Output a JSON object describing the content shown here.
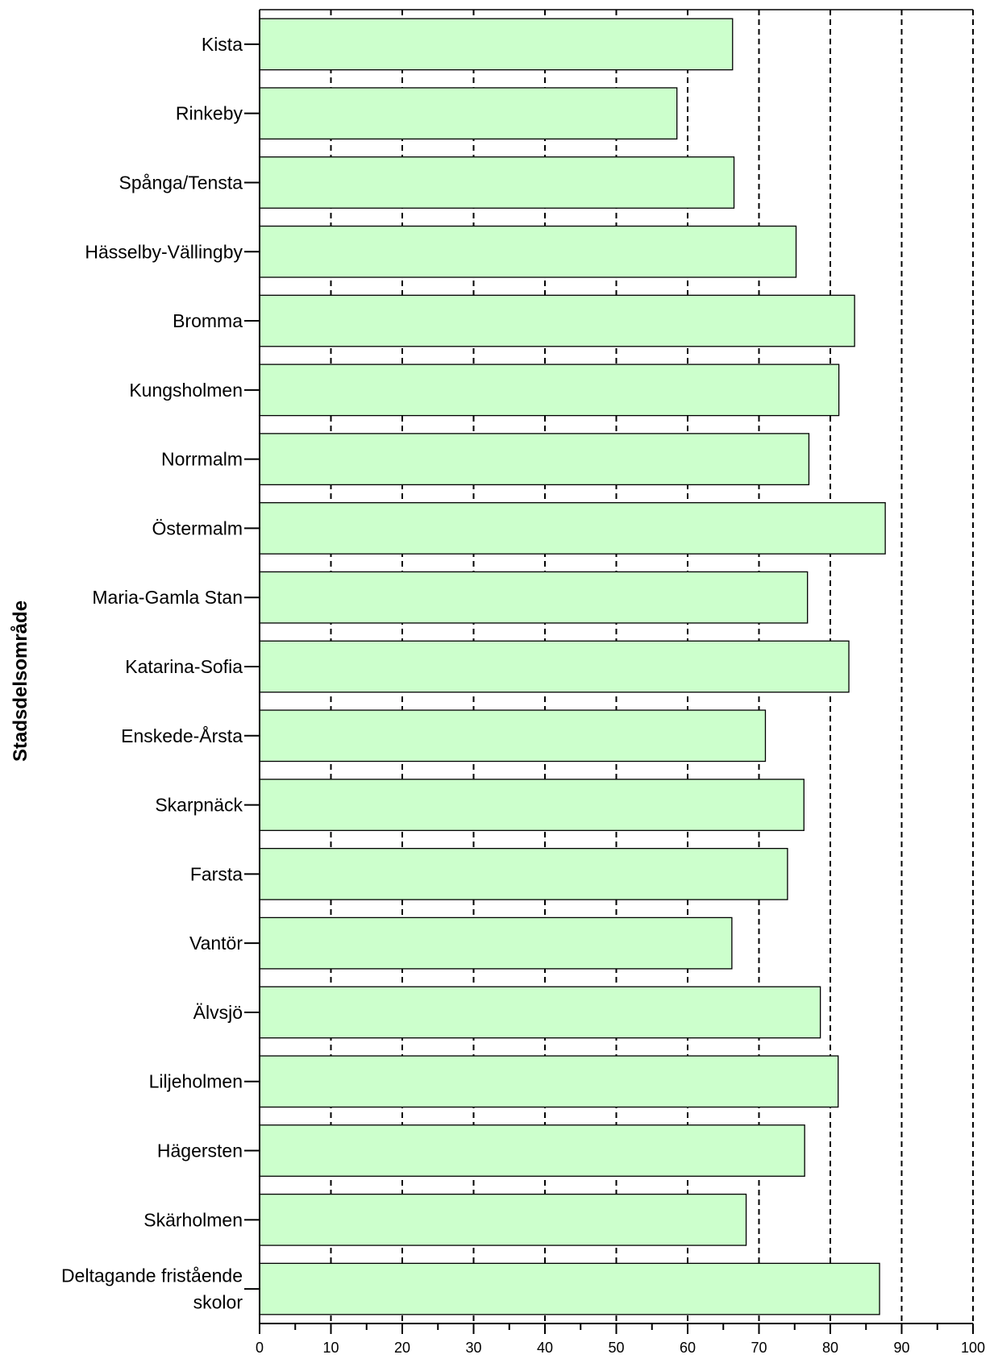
{
  "chart_data": {
    "type": "bar",
    "orientation": "horizontal",
    "ylabel": "Stadsdelsområde",
    "xlabel": "",
    "title": "",
    "xlim": [
      0,
      100
    ],
    "xticks": [
      0,
      10,
      20,
      30,
      40,
      50,
      60,
      70,
      80,
      90,
      100
    ],
    "grid": "vertical dashed",
    "bar_color": "#ccffcc",
    "categories": [
      [
        "Kista"
      ],
      [
        "Rinkeby"
      ],
      [
        "Spånga/Tensta"
      ],
      [
        "Hässelby-Vällingby"
      ],
      [
        "Bromma"
      ],
      [
        "Kungsholmen"
      ],
      [
        "Norrmalm"
      ],
      [
        "Östermalm"
      ],
      [
        "Maria-Gamla Stan"
      ],
      [
        "Katarina-Sofia"
      ],
      [
        "Enskede-Årsta"
      ],
      [
        "Skarpnäck"
      ],
      [
        "Farsta"
      ],
      [
        "Vantör"
      ],
      [
        "Älvsjö"
      ],
      [
        "Liljeholmen"
      ],
      [
        "Hägersten"
      ],
      [
        "Skärholmen"
      ],
      [
        "Deltagande fristående",
        "skolor"
      ]
    ],
    "values": [
      66.3,
      58.5,
      66.5,
      75.2,
      83.4,
      81.2,
      77.0,
      87.7,
      76.8,
      82.6,
      70.9,
      76.3,
      74.0,
      66.2,
      78.6,
      81.1,
      76.4,
      68.2,
      86.9
    ]
  }
}
